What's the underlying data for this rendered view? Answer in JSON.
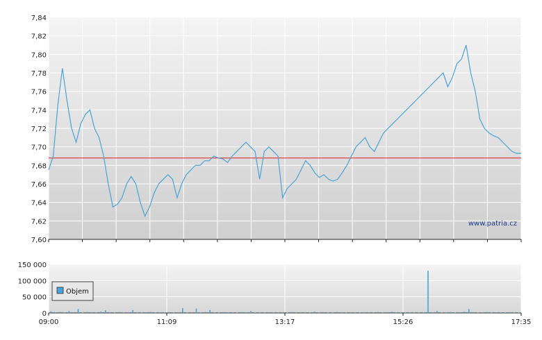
{
  "chart_data": [
    {
      "type": "line",
      "title": "",
      "xlabel": "",
      "ylabel": "",
      "ylim": [
        7.6,
        7.84
      ],
      "yticks": [
        "7,84",
        "7,82",
        "7,80",
        "7,78",
        "7,76",
        "7,74",
        "7,72",
        "7,70",
        "7,68",
        "7,66",
        "7,64",
        "7,62",
        "7,60"
      ],
      "reference_line": {
        "value": 7.688,
        "color": "#e03030"
      },
      "line_color": "#4aa3d6",
      "grid": true,
      "watermark": "www.patria.cz",
      "x": [
        "09:00",
        "09:05",
        "09:10",
        "09:15",
        "09:20",
        "09:25",
        "09:30",
        "09:35",
        "09:40",
        "09:45",
        "09:50",
        "09:55",
        "10:00",
        "10:05",
        "10:10",
        "10:15",
        "10:20",
        "10:25",
        "10:30",
        "10:35",
        "10:40",
        "10:45",
        "10:50",
        "10:55",
        "11:00",
        "11:05",
        "11:10",
        "11:15",
        "11:20",
        "11:25",
        "11:30",
        "11:35",
        "11:40",
        "11:45",
        "11:50",
        "11:55",
        "12:00",
        "12:05",
        "12:10",
        "12:15",
        "12:20",
        "12:25",
        "12:30",
        "12:35",
        "12:40",
        "12:45",
        "12:50",
        "12:55",
        "13:00",
        "13:05",
        "13:10",
        "13:15",
        "13:20",
        "13:25",
        "13:30",
        "13:35",
        "13:40",
        "13:45",
        "13:50",
        "13:55",
        "14:00",
        "14:05",
        "14:10",
        "14:15",
        "14:20",
        "14:25",
        "14:30",
        "14:35",
        "14:40",
        "14:45",
        "14:50",
        "14:55",
        "15:00",
        "15:05",
        "15:10",
        "15:15",
        "15:20",
        "15:25",
        "15:30",
        "15:35",
        "15:40",
        "15:45",
        "15:50",
        "15:55",
        "16:00",
        "16:05",
        "16:10",
        "16:15",
        "16:20",
        "16:25",
        "16:30",
        "16:35",
        "16:40",
        "16:45",
        "16:50",
        "16:55",
        "17:00",
        "17:05",
        "17:10",
        "17:15",
        "17:20",
        "17:25",
        "17:30",
        "17:35"
      ],
      "series": [
        {
          "values": [
            7.675,
            7.69,
            7.745,
            7.785,
            7.75,
            7.72,
            7.705,
            7.725,
            7.735,
            7.74,
            7.72,
            7.71,
            7.69,
            7.66,
            7.635,
            7.638,
            7.645,
            7.66,
            7.668,
            7.66,
            7.64,
            7.625,
            7.635,
            7.65,
            7.66,
            7.665,
            7.67,
            7.665,
            7.645,
            7.66,
            7.67,
            7.675,
            7.68,
            7.68,
            7.685,
            7.685,
            7.69,
            7.688,
            7.687,
            7.683,
            7.69,
            7.695,
            7.7,
            7.705,
            7.7,
            7.695,
            7.665,
            7.695,
            7.7,
            7.695,
            7.69,
            7.645,
            7.655,
            7.66,
            7.665,
            7.675,
            7.685,
            7.68,
            7.672,
            7.667,
            7.67,
            7.665,
            7.663,
            7.665,
            7.672,
            7.68,
            7.69,
            7.7,
            7.705,
            7.71,
            7.7,
            7.695,
            7.705,
            7.715,
            7.72,
            7.725,
            7.73,
            7.735,
            7.74,
            7.745,
            7.75,
            7.755,
            7.76,
            7.765,
            7.77,
            7.775,
            7.78,
            7.765,
            7.775,
            7.79,
            7.795,
            7.81,
            7.78,
            7.76,
            7.73,
            7.72,
            7.715,
            7.712,
            7.71,
            7.705,
            7.7,
            7.695,
            7.693,
            7.693
          ]
        }
      ]
    },
    {
      "type": "bar",
      "title": "",
      "xlabel": "",
      "ylabel": "",
      "ylim": [
        0,
        150000
      ],
      "yticks": [
        "150 000",
        "100 000",
        "50 000",
        "0"
      ],
      "xticks": [
        "09:00",
        "11:09",
        "13:17",
        "15:26",
        "17:35"
      ],
      "bar_color": "#4aa3d6",
      "grid": true,
      "legend": {
        "label": "Objem",
        "placement": "top-left"
      },
      "series": [
        {
          "name": "Objem",
          "values": [
            5000,
            2000,
            3000,
            1500,
            6000,
            2500,
            12000,
            1000,
            3000,
            2000,
            1500,
            4000,
            8000,
            2000,
            1000,
            3000,
            1500,
            2000,
            9000,
            1200,
            1500,
            2000,
            3000,
            1000,
            2000,
            1500,
            2500,
            1000,
            2000,
            15000,
            1000,
            2000,
            14000,
            1500,
            3000,
            9000,
            1200,
            1000,
            2500,
            1500,
            2000,
            1000,
            3000,
            1800,
            6000,
            1200,
            1500,
            1000,
            2000,
            1300,
            1500,
            2000,
            1000,
            3000,
            1200,
            2000,
            1500,
            1000,
            4000,
            1500,
            2500,
            1000,
            1200,
            3000,
            1500,
            1000,
            2000,
            1200,
            1000,
            1500,
            2000,
            1200,
            3000,
            1000,
            2500,
            4000,
            1500,
            1000,
            1200,
            1800,
            1300,
            1000,
            1500,
            130000,
            2000,
            6000,
            1200,
            1500,
            3000,
            1000,
            2000,
            4000,
            12000,
            2500,
            1000,
            1500,
            3000,
            1200,
            2000,
            1500,
            1000,
            2500,
            1200,
            1000
          ]
        }
      ]
    }
  ]
}
